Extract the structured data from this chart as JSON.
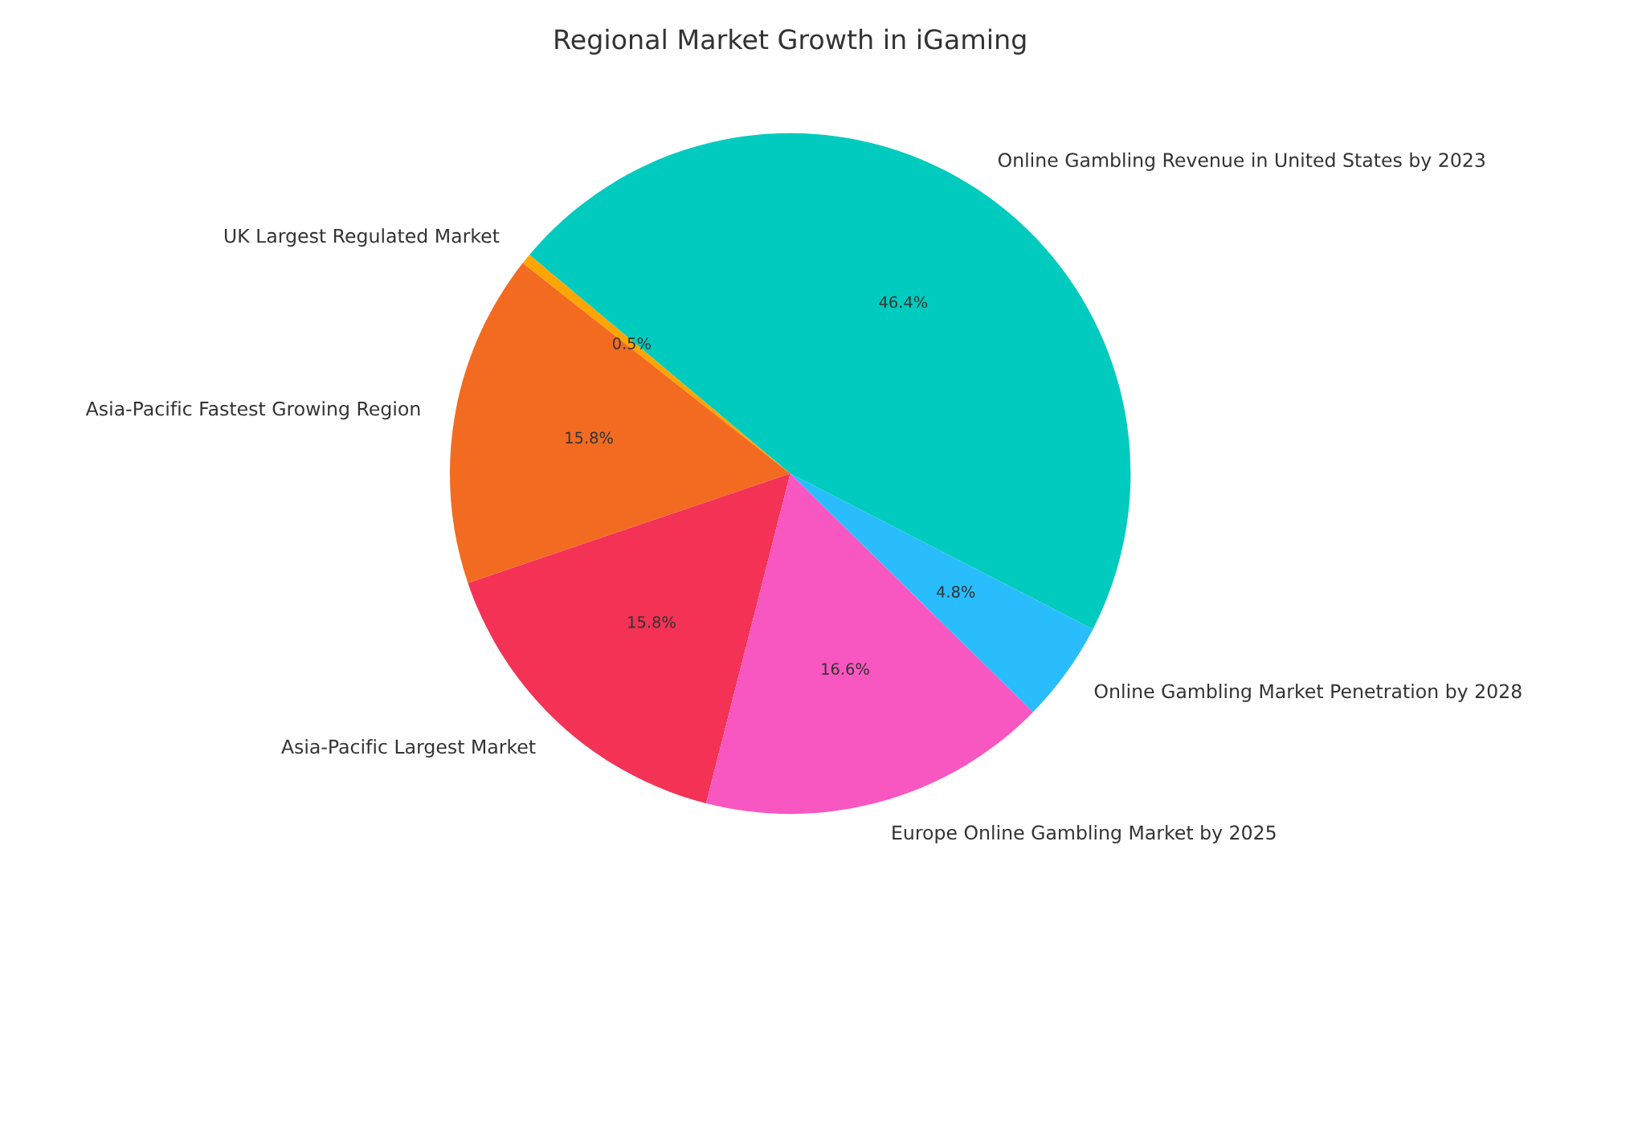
{
  "chart_data": {
    "type": "pie",
    "title": "Regional Market Growth in iGaming",
    "categories": [
      "Online Gambling Revenue in United States by 2023",
      "UK Largest Regulated Market",
      "Asia-Pacific Fastest Growing Region",
      "Asia-Pacific Largest Market",
      "Europe Online Gambling Market by 2025",
      "Online Gambling Market Penetration by 2028"
    ],
    "values": [
      46.4,
      0.5,
      15.8,
      15.8,
      16.6,
      4.8
    ],
    "colors": [
      "#00cbbe",
      "#ffa500",
      "#f26b21",
      "#f43255",
      "#f857c1",
      "#29bdfd"
    ],
    "value_labels": [
      "46.4%",
      "0.5%",
      "15.8%",
      "15.8%",
      "16.6%",
      "4.8%"
    ]
  }
}
